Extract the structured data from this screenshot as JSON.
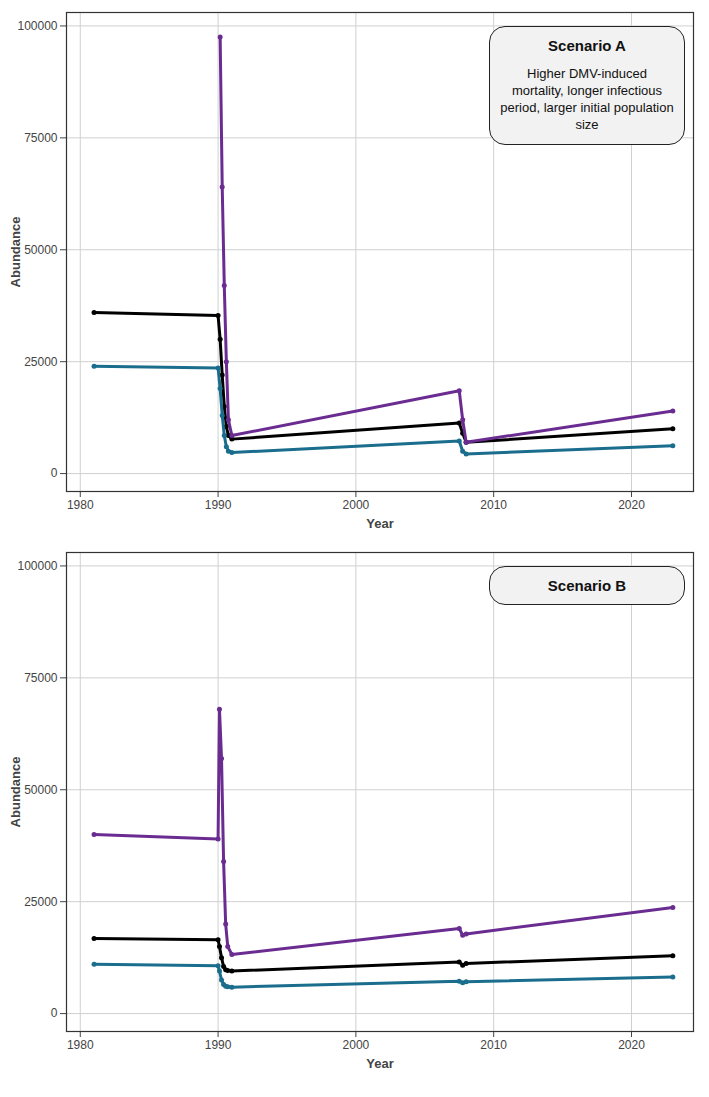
{
  "chart_data": [
    {
      "type": "line",
      "title": "Scenario A",
      "subtitle": "Higher DMV-induced mortality, longer infectious period, larger initial population size",
      "x_label": "Year",
      "y_label": "Abundance",
      "x": [
        1981,
        1990,
        1990.15,
        1990.3,
        1990.45,
        1990.6,
        1990.75,
        1991,
        2007.5,
        2007.75,
        2008,
        2023
      ],
      "series": [
        {
          "color": "#000000",
          "marker": "circle",
          "values": [
            36000,
            35300,
            30000,
            22000,
            15000,
            10500,
            8500,
            7700,
            11300,
            9000,
            7000,
            10000
          ]
        },
        {
          "color": "#1a6d8c",
          "marker": "circle",
          "values": [
            24000,
            23600,
            19000,
            13000,
            8500,
            6000,
            5000,
            4700,
            7300,
            5000,
            4400,
            6200
          ]
        },
        {
          "color": "#6a2c91",
          "marker": "circle",
          "values": [
            null,
            null,
            97500,
            64000,
            42000,
            25000,
            12000,
            8500,
            18500,
            12000,
            7000,
            14000
          ]
        }
      ],
      "xlim": [
        1979,
        2024.5
      ],
      "ylim": [
        -4000,
        103000
      ],
      "xticks": [
        1980,
        1990,
        2000,
        2010,
        2020
      ],
      "yticks": [
        0,
        25000,
        50000,
        75000,
        100000
      ],
      "grid": true
    },
    {
      "type": "line",
      "title": "Scenario B",
      "x_label": "Year",
      "y_label": "Abundance",
      "x": [
        1981,
        1990,
        1990.1,
        1990.25,
        1990.4,
        1990.55,
        1990.7,
        1991,
        2007.5,
        2007.75,
        2008,
        2023
      ],
      "series": [
        {
          "color": "#6a2c91",
          "marker": "circle",
          "values": [
            40000,
            39000,
            68000,
            57000,
            34000,
            20000,
            15000,
            13200,
            19000,
            17500,
            17800,
            23700
          ]
        },
        {
          "color": "#000000",
          "marker": "circle",
          "values": [
            16800,
            16500,
            15000,
            12500,
            10500,
            9800,
            9600,
            9500,
            11500,
            10800,
            11200,
            12900
          ]
        },
        {
          "color": "#1a6d8c",
          "marker": "circle",
          "values": [
            11000,
            10700,
            9500,
            7500,
            6500,
            6100,
            6000,
            5900,
            7200,
            6900,
            7100,
            8200
          ]
        }
      ],
      "xlim": [
        1979,
        2024.5
      ],
      "ylim": [
        -4000,
        103000
      ],
      "xticks": [
        1980,
        1990,
        2000,
        2010,
        2020
      ],
      "yticks": [
        0,
        25000,
        50000,
        75000,
        100000
      ],
      "grid": true
    }
  ]
}
